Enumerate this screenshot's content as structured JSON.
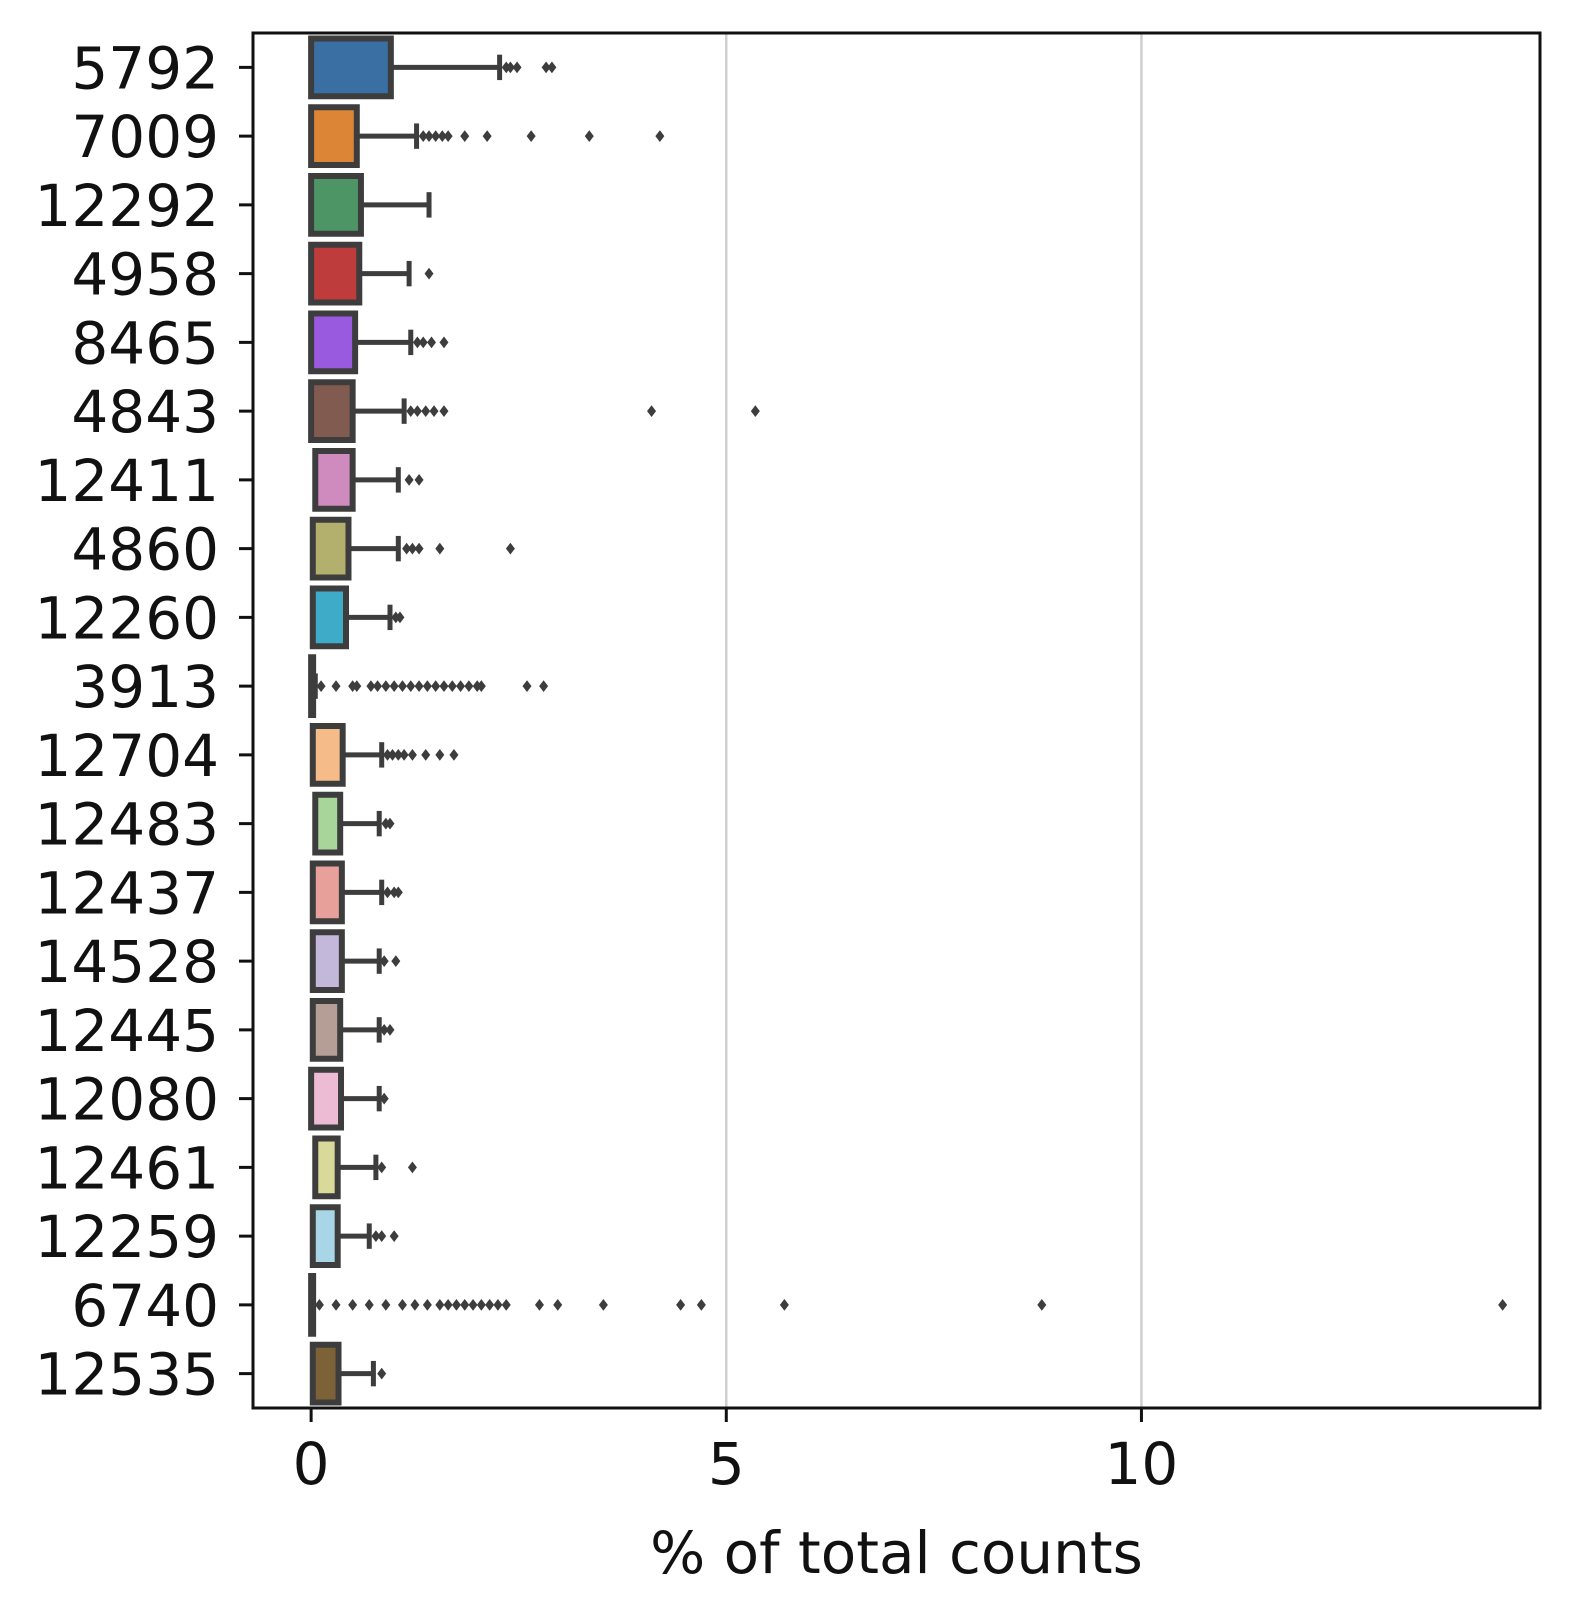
{
  "chart_data": {
    "type": "boxplot",
    "orientation": "horizontal",
    "title": "",
    "xlabel": "% of total counts",
    "ylabel": "",
    "xlim": [
      -0.7,
      14.8
    ],
    "xticks": [
      "0",
      "5",
      "10"
    ],
    "xtick_values": [
      0,
      5,
      10
    ],
    "grid": "vertical",
    "legend": "none",
    "categories": [
      "5792",
      "7009",
      "12292",
      "4958",
      "8465",
      "4843",
      "12411",
      "4860",
      "12260",
      "3913",
      "12704",
      "12483",
      "12437",
      "14528",
      "12445",
      "12080",
      "12461",
      "12259",
      "6740",
      "12535"
    ],
    "series": [
      {
        "color": "#3a6fa3",
        "q1": 0.0,
        "q3": 0.96,
        "whisker_low": 0.0,
        "whisker_high": 2.27,
        "outliers": [
          2.35,
          2.4,
          2.48,
          2.83,
          2.9
        ]
      },
      {
        "color": "#dd8537",
        "q1": 0.0,
        "q3": 0.55,
        "whisker_low": 0.0,
        "whisker_high": 1.27,
        "outliers": [
          1.35,
          1.42,
          1.5,
          1.58,
          1.65,
          1.85,
          2.12,
          2.65,
          3.35,
          4.2
        ]
      },
      {
        "color": "#4e9566",
        "q1": 0.0,
        "q3": 0.6,
        "whisker_low": 0.0,
        "whisker_high": 1.42,
        "outliers": []
      },
      {
        "color": "#bf3c3c",
        "q1": 0.0,
        "q3": 0.58,
        "whisker_low": 0.0,
        "whisker_high": 1.18,
        "outliers": [
          1.42
        ]
      },
      {
        "color": "#9a5ae0",
        "q1": 0.0,
        "q3": 0.53,
        "whisker_low": 0.0,
        "whisker_high": 1.2,
        "outliers": [
          1.28,
          1.35,
          1.45,
          1.6
        ]
      },
      {
        "color": "#815b50",
        "q1": 0.0,
        "q3": 0.5,
        "whisker_low": 0.0,
        "whisker_high": 1.12,
        "outliers": [
          1.2,
          1.28,
          1.38,
          1.48,
          1.6,
          4.1,
          5.35
        ]
      },
      {
        "color": "#cf8abe",
        "q1": 0.05,
        "q3": 0.5,
        "whisker_low": 0.05,
        "whisker_high": 1.05,
        "outliers": [
          1.18,
          1.3
        ]
      },
      {
        "color": "#b2b06c",
        "q1": 0.02,
        "q3": 0.45,
        "whisker_low": 0.02,
        "whisker_high": 1.05,
        "outliers": [
          1.15,
          1.22,
          1.3,
          1.55,
          2.4
        ]
      },
      {
        "color": "#3eabc8",
        "q1": 0.02,
        "q3": 0.42,
        "whisker_low": 0.02,
        "whisker_high": 0.95,
        "outliers": [
          1.02,
          1.07
        ]
      },
      {
        "color": "#3a6fa3",
        "q1": 0.0,
        "q3": 0.02,
        "whisker_low": 0.0,
        "whisker_high": 0.05,
        "outliers": [
          0.12,
          0.3,
          0.5,
          0.55,
          0.72,
          0.8,
          0.9,
          1.0,
          1.1,
          1.2,
          1.3,
          1.4,
          1.5,
          1.6,
          1.7,
          1.8,
          1.9,
          2.0,
          2.05,
          2.6,
          2.8
        ]
      },
      {
        "color": "#f5bc8a",
        "q1": 0.02,
        "q3": 0.38,
        "whisker_low": 0.02,
        "whisker_high": 0.85,
        "outliers": [
          0.92,
          0.98,
          1.05,
          1.12,
          1.22,
          1.38,
          1.55,
          1.72
        ]
      },
      {
        "color": "#a8d59a",
        "q1": 0.05,
        "q3": 0.35,
        "whisker_low": 0.05,
        "whisker_high": 0.82,
        "outliers": [
          0.9,
          0.95
        ]
      },
      {
        "color": "#e8a09a",
        "q1": 0.02,
        "q3": 0.37,
        "whisker_low": 0.02,
        "whisker_high": 0.85,
        "outliers": [
          0.92,
          1.0,
          1.05
        ]
      },
      {
        "color": "#c3b8d9",
        "q1": 0.02,
        "q3": 0.37,
        "whisker_low": 0.02,
        "whisker_high": 0.82,
        "outliers": [
          0.88,
          1.02
        ]
      },
      {
        "color": "#b59e96",
        "q1": 0.02,
        "q3": 0.35,
        "whisker_low": 0.02,
        "whisker_high": 0.82,
        "outliers": [
          0.88,
          0.95
        ]
      },
      {
        "color": "#ecbcd4",
        "q1": 0.0,
        "q3": 0.36,
        "whisker_low": 0.0,
        "whisker_high": 0.82,
        "outliers": [
          0.88
        ]
      },
      {
        "color": "#d9d99a",
        "q1": 0.05,
        "q3": 0.32,
        "whisker_low": 0.05,
        "whisker_high": 0.78,
        "outliers": [
          0.85,
          1.22
        ]
      },
      {
        "color": "#a8d6e6",
        "q1": 0.02,
        "q3": 0.32,
        "whisker_low": 0.02,
        "whisker_high": 0.7,
        "outliers": [
          0.78,
          0.85,
          1.0
        ]
      },
      {
        "color": "#3a6fa3",
        "q1": 0.0,
        "q3": 0.0,
        "whisker_low": 0.0,
        "whisker_high": 0.0,
        "outliers": [
          0.1,
          0.3,
          0.5,
          0.7,
          0.9,
          1.1,
          1.25,
          1.4,
          1.55,
          1.65,
          1.75,
          1.85,
          1.95,
          2.05,
          2.15,
          2.25,
          2.35,
          2.75,
          2.97,
          3.52,
          4.45,
          4.7,
          5.7,
          8.8,
          14.35
        ]
      },
      {
        "color": "#7d6238",
        "q1": 0.02,
        "q3": 0.33,
        "whisker_low": 0.02,
        "whisker_high": 0.75,
        "outliers": [
          0.85
        ]
      }
    ]
  }
}
